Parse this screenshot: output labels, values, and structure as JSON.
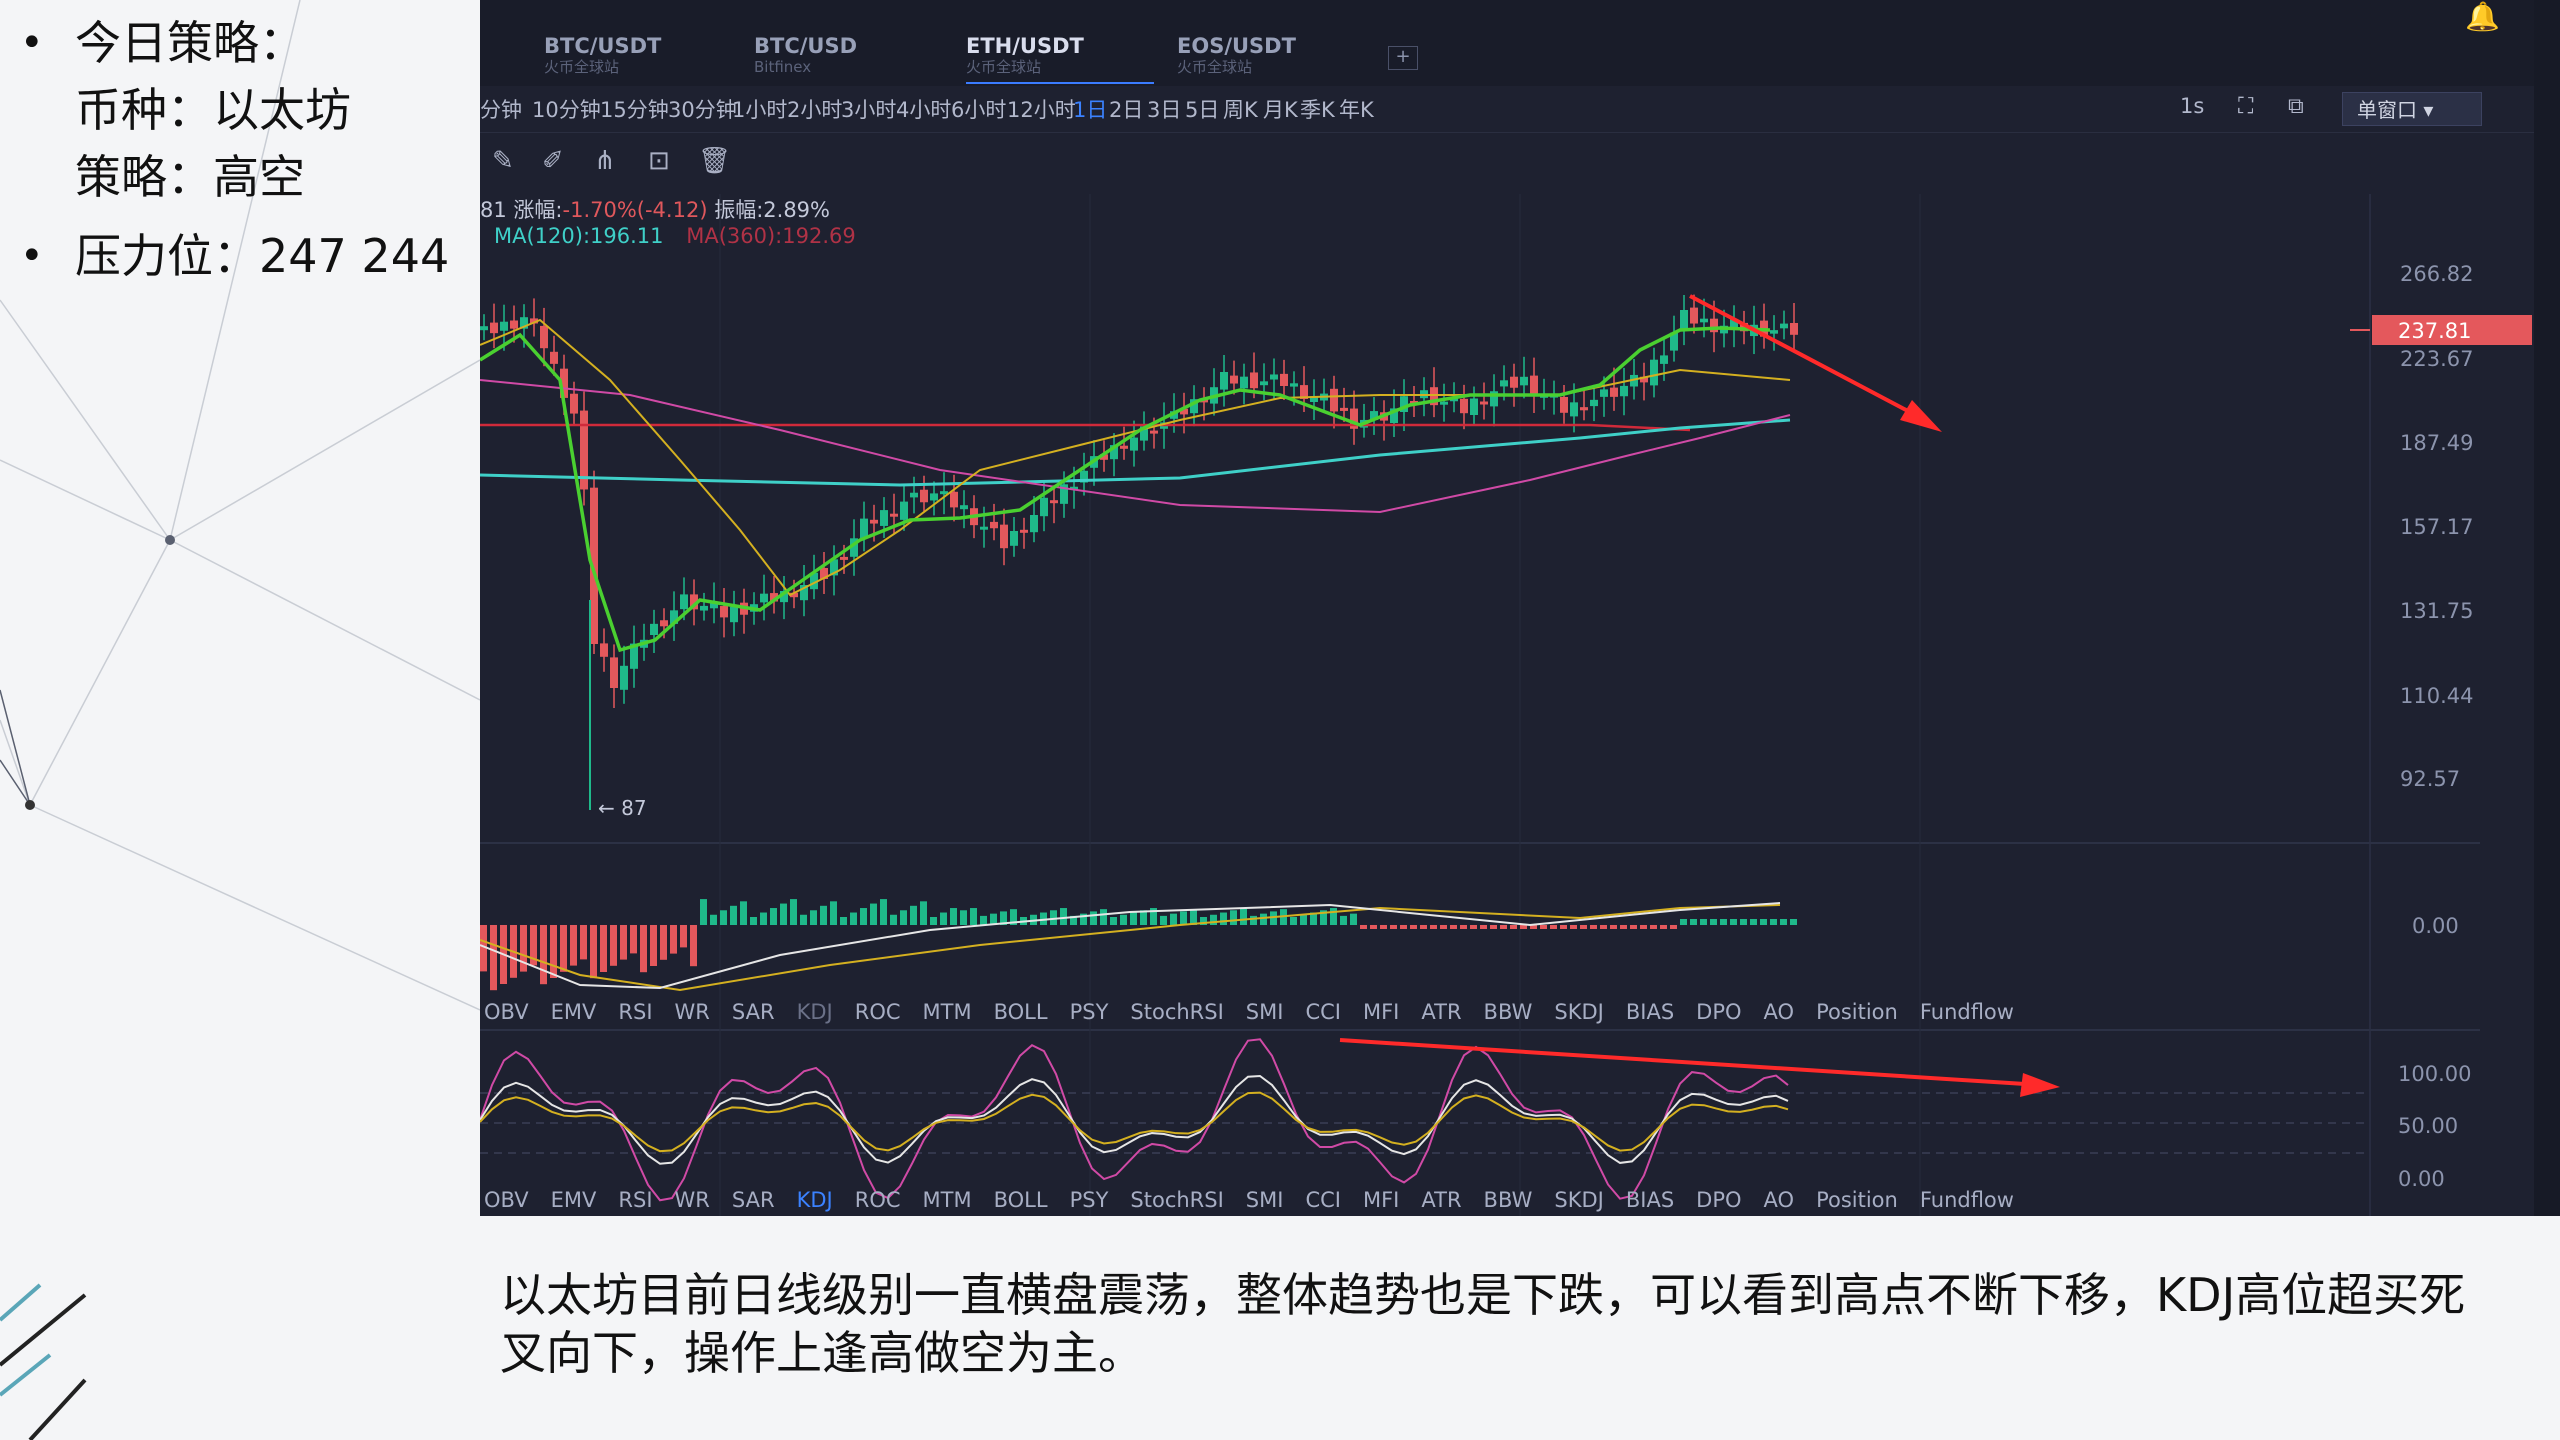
{
  "slide": {
    "bullet1": "今日策略：",
    "line_coin": "币种：以太坊",
    "line_strategy": "策略：高空",
    "bullet2": "压力位：247  244",
    "caption": "以太坊目前日线级别一直横盘震荡，整体趋势也是下跌，可以看到高点不断下移，KDJ高位超买死叉向下，操作上逢高做空为主。"
  },
  "tabs": [
    {
      "pair": "BTC/USDT",
      "exchange": "火币全球站"
    },
    {
      "pair": "BTC/USD",
      "exchange": "Bitfinex"
    },
    {
      "pair": "ETH/USDT",
      "exchange": "火币全球站",
      "active": true
    },
    {
      "pair": "EOS/USDT",
      "exchange": "火币全球站"
    }
  ],
  "tab_add": "+",
  "timeframes": [
    "分钟",
    "10分钟",
    "15分钟",
    "30分钟",
    "1小时",
    "2小时",
    "3小时",
    "4小时",
    "6小时",
    "12小时",
    "1日",
    "2日",
    "3日",
    "5日",
    "周K",
    "月K",
    "季K",
    "年K"
  ],
  "selected_timeframe": "1日",
  "toolbar_right": {
    "interval": "1s",
    "window_select": "单窗口 ▾"
  },
  "toolbar_icons": [
    "draw-line-icon",
    "brush-icon",
    "pattern-icon",
    "measure-icon",
    "trash-icon"
  ],
  "info": {
    "prefix": "81",
    "change_label": "涨幅:",
    "change_value": "-1.70%(-4.12)",
    "amplitude_label": "振幅:",
    "amplitude_value": "2.89%",
    "ma120": "MA(120):196.11",
    "ma360": "MA(360):192.69"
  },
  "price_axis": [
    "266.82",
    "223.67",
    "187.49",
    "157.17",
    "131.75",
    "110.44",
    "92.57"
  ],
  "current_price": "237.81",
  "low_label": "← 87",
  "macd_axis": "0.00",
  "kdj_axis": [
    "100.00",
    "50.00",
    "0.00"
  ],
  "indicators": [
    "OBV",
    "EMV",
    "RSI",
    "WR",
    "SAR",
    "KDJ",
    "ROC",
    "MTM",
    "BOLL",
    "PSY",
    "StochRSI",
    "SMI",
    "CCI",
    "MFI",
    "ATR",
    "BBW",
    "SKDJ",
    "BIAS",
    "DPO",
    "AO",
    "Position",
    "Fundflow"
  ],
  "colors": {
    "up": "#1fb98a",
    "down": "#e4585c",
    "bg": "#1e2130",
    "accent": "#3b82ff",
    "arrow": "#ff2a2a"
  }
}
